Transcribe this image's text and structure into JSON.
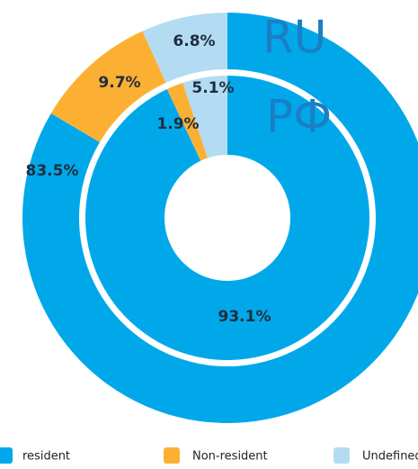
{
  "chart_data": {
    "type": "donut",
    "categories": [
      "resident",
      "Non-resident",
      "Undefined"
    ],
    "colors": [
      "#00a8ea",
      "#fbb034",
      "#b3dcf3"
    ],
    "series": [
      {
        "name": "RU",
        "values": [
          83.5,
          9.7,
          6.8
        ],
        "value_labels": [
          "83.5%",
          "9.7%",
          "6.8%"
        ]
      },
      {
        "name": "РФ",
        "values": [
          93.1,
          1.9,
          5.1
        ],
        "value_labels": [
          "93.1%",
          "1.9%",
          "5.1%"
        ]
      }
    ]
  }
}
